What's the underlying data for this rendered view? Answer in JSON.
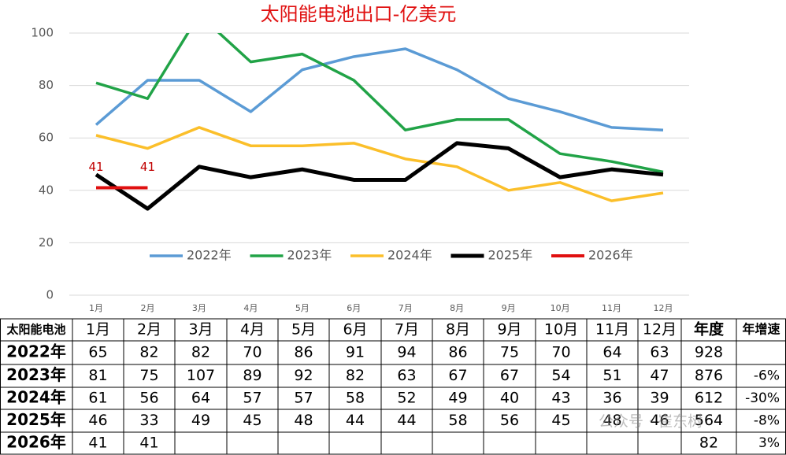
{
  "chart_data": {
    "type": "line",
    "title": "太阳能电池出口-亿美元",
    "categories": [
      "1月",
      "2月",
      "3月",
      "4月",
      "5月",
      "6月",
      "7月",
      "8月",
      "9月",
      "10月",
      "11月",
      "12月"
    ],
    "ylim": [
      0,
      100
    ],
    "yticks": [
      0,
      20,
      40,
      60,
      80,
      100
    ],
    "grid": true,
    "legend": "bottom",
    "series": [
      {
        "name": "2022年",
        "color": "#5b9bd5",
        "width": 3.5,
        "values": [
          65,
          82,
          82,
          70,
          86,
          91,
          94,
          86,
          75,
          70,
          64,
          63
        ]
      },
      {
        "name": "2023年",
        "color": "#21a347",
        "width": 3.5,
        "values": [
          81,
          75,
          107,
          89,
          92,
          82,
          63,
          67,
          67,
          54,
          51,
          47
        ]
      },
      {
        "name": "2024年",
        "color": "#fbbf2a",
        "width": 3.5,
        "values": [
          61,
          56,
          64,
          57,
          57,
          58,
          52,
          49,
          40,
          43,
          36,
          39
        ]
      },
      {
        "name": "2025年",
        "color": "#000000",
        "width": 5,
        "values": [
          46,
          33,
          49,
          45,
          48,
          44,
          44,
          58,
          56,
          45,
          48,
          46
        ]
      },
      {
        "name": "2026年",
        "color": "#e01010",
        "width": 4,
        "data_labels": true,
        "values": [
          41,
          41,
          null,
          null,
          null,
          null,
          null,
          null,
          null,
          null,
          null,
          null
        ]
      }
    ]
  },
  "table": {
    "corner": "太阳能电池",
    "header_total": "年度",
    "header_growth": "年增速",
    "totals": [
      928,
      876,
      612,
      564,
      82
    ],
    "growth": [
      null,
      "-6%",
      "-30%",
      "-8%",
      "3%"
    ]
  },
  "watermark": "公众号 · 崔东树"
}
